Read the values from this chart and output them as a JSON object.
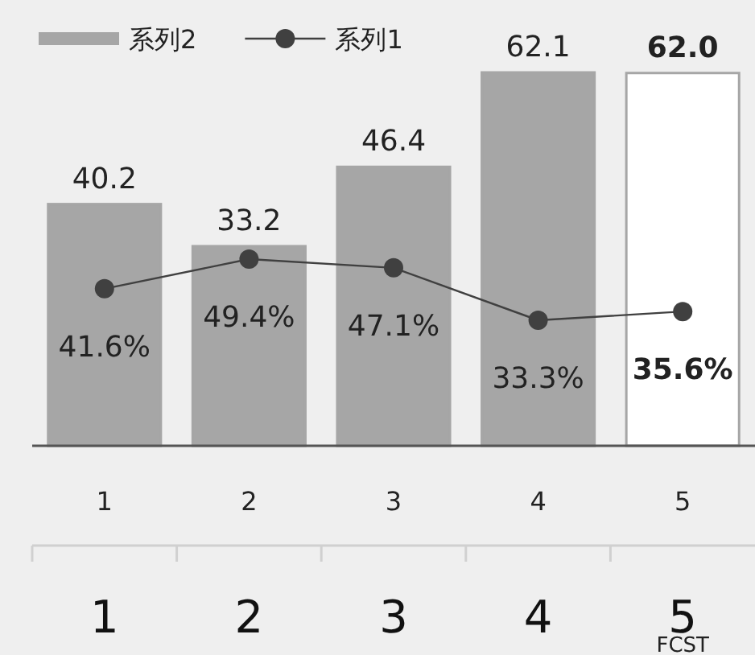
{
  "chart_data": {
    "type": "bar",
    "categories": [
      "1",
      "2",
      "3",
      "4",
      "5"
    ],
    "series": [
      {
        "name": "系列2",
        "color": "#a6a6a6",
        "colors": [
          "#a6a6a6",
          "#a6a6a6",
          "#a6a6a6",
          "#a6a6a6",
          "#ffffff"
        ],
        "values": [
          40.2,
          33.2,
          46.4,
          62.1,
          62.0
        ],
        "value_labels": [
          "40.2",
          "33.2",
          "46.4",
          "62.1",
          "62.0"
        ]
      },
      {
        "name": "系列1",
        "type": "line",
        "axis": "y2",
        "color": "#404040",
        "marker": "circle",
        "values": [
          41.6,
          49.4,
          47.1,
          33.3,
          35.6
        ],
        "value_labels": [
          "41.6%",
          "49.4%",
          "47.1%",
          "33.3%",
          "35.6%"
        ]
      }
    ],
    "tick_labels": "x",
    "legend": "top left",
    "annotations": [
      "1",
      "2",
      "3",
      "4",
      "5",
      "FCST"
    ]
  }
}
